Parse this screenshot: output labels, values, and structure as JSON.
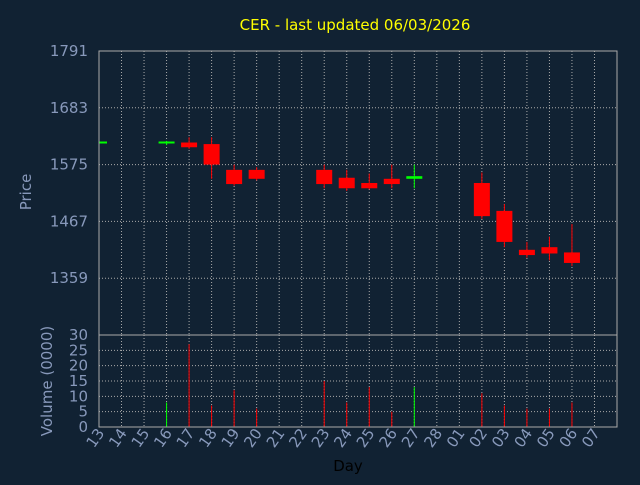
{
  "chart_data": {
    "type": "candlestick",
    "title": "CER - last updated 06/03/2026",
    "xlabel": "Day",
    "ylabel_price": "Price",
    "ylabel_volume": "Volume (0000)",
    "price_ylim": [
      1251,
      1791
    ],
    "price_ticks": [
      "1791",
      "1683",
      "1575",
      "1467",
      "1359"
    ],
    "volume_ylim": [
      0,
      30
    ],
    "volume_ticks": [
      "30",
      "25",
      "20",
      "15",
      "10",
      "5",
      "0"
    ],
    "x_tick_labels": [
      "13",
      "14",
      "15",
      "16",
      "17",
      "18",
      "19",
      "20",
      "21",
      "22",
      "23",
      "24",
      "25",
      "26",
      "27",
      "28",
      "01",
      "02",
      "03",
      "04",
      "05",
      "06",
      "07"
    ],
    "grid": true,
    "colors": {
      "background": "#112233",
      "text": "#8899bb",
      "title": "#ffff00",
      "grid": "#aaaaaa",
      "up": "#00ff00",
      "down": "#ff0000",
      "frame": "#aaaaaa"
    },
    "candles": [
      {
        "day": "13",
        "open": 1617,
        "high": 1617,
        "low": 1617,
        "close": 1617,
        "volume": 0
      },
      {
        "day": "16",
        "open": 1617,
        "high": 1620,
        "low": 1612,
        "close": 1617,
        "volume": 8
      },
      {
        "day": "17",
        "open": 1617,
        "high": 1627,
        "low": 1605,
        "close": 1608,
        "volume": 27
      },
      {
        "day": "18",
        "open": 1614,
        "high": 1627,
        "low": 1548,
        "close": 1575,
        "volume": 7
      },
      {
        "day": "19",
        "open": 1565,
        "high": 1575,
        "low": 1535,
        "close": 1538,
        "volume": 12
      },
      {
        "day": "20",
        "open": 1565,
        "high": 1570,
        "low": 1545,
        "close": 1548,
        "volume": 6
      },
      {
        "day": "23",
        "open": 1565,
        "high": 1575,
        "low": 1530,
        "close": 1538,
        "volume": 15
      },
      {
        "day": "24",
        "open": 1550,
        "high": 1565,
        "low": 1525,
        "close": 1530,
        "volume": 8
      },
      {
        "day": "25",
        "open": 1540,
        "high": 1558,
        "low": 1528,
        "close": 1530,
        "volume": 13
      },
      {
        "day": "26",
        "open": 1548,
        "high": 1575,
        "low": 1530,
        "close": 1538,
        "volume": 5
      },
      {
        "day": "27",
        "open": 1548,
        "high": 1575,
        "low": 1530,
        "close": 1553,
        "volume": 13
      },
      {
        "day": "02",
        "open": 1540,
        "high": 1560,
        "low": 1472,
        "close": 1477,
        "volume": 11
      },
      {
        "day": "03",
        "open": 1487,
        "high": 1500,
        "low": 1418,
        "close": 1428,
        "volume": 7
      },
      {
        "day": "04",
        "open": 1413,
        "high": 1428,
        "low": 1398,
        "close": 1403,
        "volume": 6
      },
      {
        "day": "05",
        "open": 1418,
        "high": 1438,
        "low": 1393,
        "close": 1406,
        "volume": 6
      },
      {
        "day": "06",
        "open": 1408,
        "high": 1462,
        "low": 1382,
        "close": 1388,
        "volume": 8
      }
    ]
  }
}
